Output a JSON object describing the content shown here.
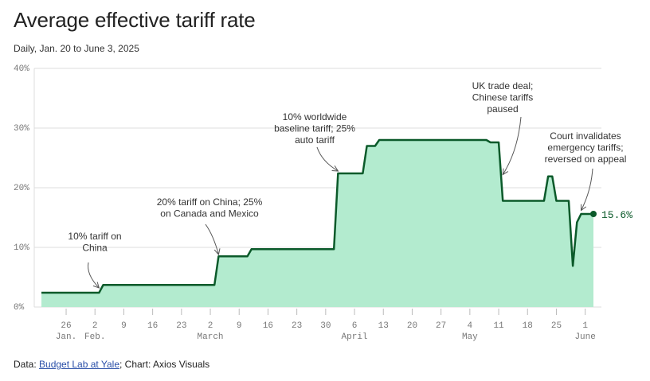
{
  "header": {
    "title": "Average effective tariff rate",
    "subtitle": "Daily, Jan. 20 to June 3, 2025"
  },
  "footer": {
    "source_prefix": "Data: ",
    "source_link": "Budget Lab at Yale",
    "source_suffix": "; Chart: Axios Visuals"
  },
  "colors": {
    "line": "#0b5a2a",
    "fill": "#b3ebcf",
    "grid": "#dddddd"
  },
  "chart_data": {
    "type": "area",
    "x_start": "2025-01-20",
    "x_end": "2025-06-03",
    "ylim": [
      0,
      40
    ],
    "yticks": [
      "0%",
      "10%",
      "20%",
      "30%",
      "40%"
    ],
    "grid": true,
    "xticks": [
      {
        "date": "2025-01-26",
        "day": "26",
        "month": "Jan."
      },
      {
        "date": "2025-02-02",
        "day": "2",
        "month": "Feb."
      },
      {
        "date": "2025-02-09",
        "day": "9",
        "month": ""
      },
      {
        "date": "2025-02-16",
        "day": "16",
        "month": ""
      },
      {
        "date": "2025-02-23",
        "day": "23",
        "month": ""
      },
      {
        "date": "2025-03-02",
        "day": "2",
        "month": "March"
      },
      {
        "date": "2025-03-09",
        "day": "9",
        "month": ""
      },
      {
        "date": "2025-03-16",
        "day": "16",
        "month": ""
      },
      {
        "date": "2025-03-23",
        "day": "23",
        "month": ""
      },
      {
        "date": "2025-03-30",
        "day": "30",
        "month": ""
      },
      {
        "date": "2025-04-06",
        "day": "6",
        "month": "April"
      },
      {
        "date": "2025-04-13",
        "day": "13",
        "month": ""
      },
      {
        "date": "2025-04-20",
        "day": "20",
        "month": ""
      },
      {
        "date": "2025-04-27",
        "day": "27",
        "month": ""
      },
      {
        "date": "2025-05-04",
        "day": "4",
        "month": "May"
      },
      {
        "date": "2025-05-11",
        "day": "11",
        "month": ""
      },
      {
        "date": "2025-05-18",
        "day": "18",
        "month": ""
      },
      {
        "date": "2025-05-25",
        "day": "25",
        "month": ""
      },
      {
        "date": "2025-06-01",
        "day": "1",
        "month": "June"
      }
    ],
    "points": [
      {
        "x": "2025-01-20",
        "y": 2.4
      },
      {
        "x": "2025-02-03",
        "y": 2.4
      },
      {
        "x": "2025-02-04",
        "y": 3.7
      },
      {
        "x": "2025-03-03",
        "y": 3.7
      },
      {
        "x": "2025-03-04",
        "y": 8.5
      },
      {
        "x": "2025-03-11",
        "y": 8.5
      },
      {
        "x": "2025-03-12",
        "y": 9.7
      },
      {
        "x": "2025-04-01",
        "y": 9.7
      },
      {
        "x": "2025-04-02",
        "y": 22.4
      },
      {
        "x": "2025-04-08",
        "y": 22.4
      },
      {
        "x": "2025-04-09",
        "y": 27.0
      },
      {
        "x": "2025-04-11",
        "y": 27.0
      },
      {
        "x": "2025-04-12",
        "y": 28.0
      },
      {
        "x": "2025-05-08",
        "y": 28.0
      },
      {
        "x": "2025-05-09",
        "y": 27.6
      },
      {
        "x": "2025-05-11",
        "y": 27.6
      },
      {
        "x": "2025-05-12",
        "y": 17.8
      },
      {
        "x": "2025-05-22",
        "y": 17.8
      },
      {
        "x": "2025-05-23",
        "y": 21.9
      },
      {
        "x": "2025-05-24",
        "y": 21.9
      },
      {
        "x": "2025-05-25",
        "y": 17.8
      },
      {
        "x": "2025-05-28",
        "y": 17.8
      },
      {
        "x": "2025-05-29",
        "y": 6.9
      },
      {
        "x": "2025-05-30",
        "y": 14.2
      },
      {
        "x": "2025-05-31",
        "y": 15.6
      },
      {
        "x": "2025-06-03",
        "y": 15.6
      }
    ],
    "end_label": "15.6%",
    "annotations": [
      {
        "lines": [
          "10% tariff on",
          "China"
        ],
        "target": {
          "x": "2025-02-03",
          "y": 3.2
        }
      },
      {
        "lines": [
          "20% tariff on China; 25%",
          "on Canada and Mexico"
        ],
        "target": {
          "x": "2025-03-04",
          "y": 8.8
        }
      },
      {
        "lines": [
          "10% worldwide",
          "baseline tariff; 25%",
          "auto tariff"
        ],
        "target": {
          "x": "2025-04-02",
          "y": 22.8
        }
      },
      {
        "lines": [
          "UK trade deal;",
          "Chinese tariffs",
          "paused"
        ],
        "target": {
          "x": "2025-05-12",
          "y": 22.2
        }
      },
      {
        "lines": [
          "Court invalidates",
          "emergency tariffs;",
          "reversed on appeal"
        ],
        "target": {
          "x": "2025-05-31",
          "y": 16.2
        }
      }
    ]
  }
}
